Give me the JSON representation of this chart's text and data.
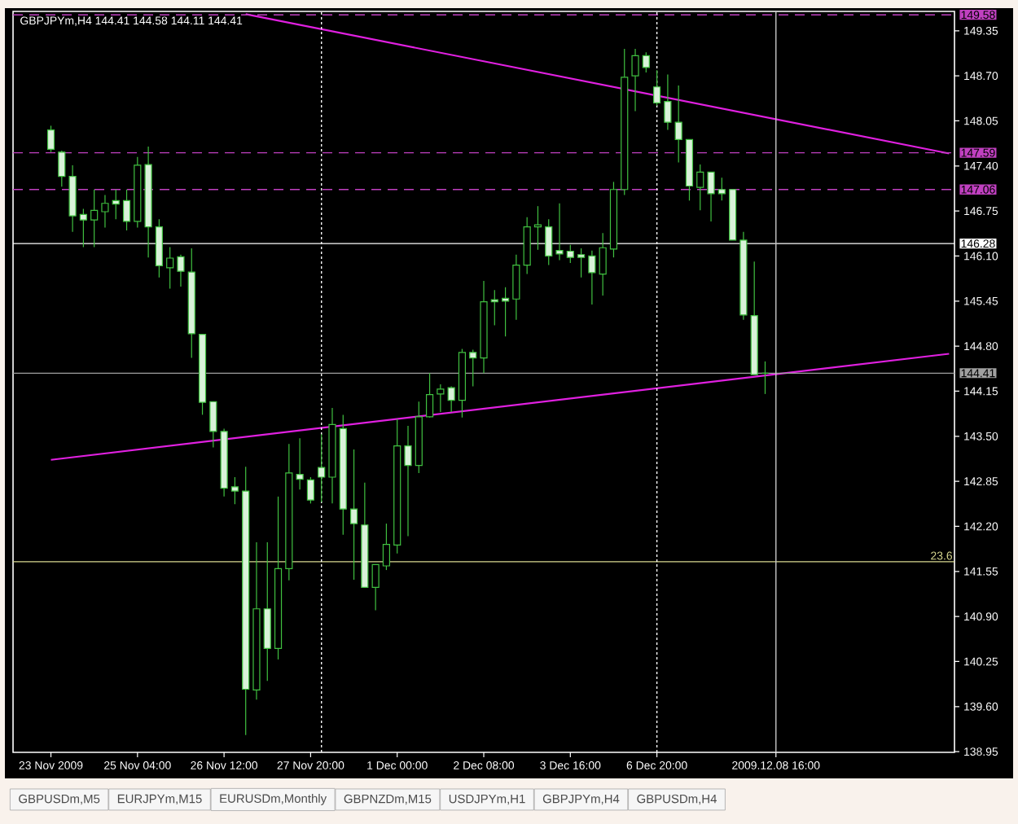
{
  "chart_data": {
    "type": "candlestick",
    "title": "GBPJPYm,H4  144.41 144.58 144.11 144.41",
    "categories": [
      "23 Nov 2009",
      null,
      null,
      null,
      null,
      null,
      null,
      null,
      "25 Nov 04:00",
      null,
      null,
      null,
      null,
      null,
      null,
      null,
      "26 Nov 12:00",
      null,
      null,
      null,
      null,
      null,
      null,
      null,
      "27 Nov 20:00",
      null,
      null,
      null,
      null,
      null,
      null,
      null,
      "1 Dec 00:00",
      null,
      null,
      null,
      null,
      null,
      null,
      null,
      "2 Dec 08:00",
      null,
      null,
      null,
      null,
      null,
      null,
      null,
      "3 Dec 16:00",
      null,
      null,
      null,
      null,
      null,
      null,
      null,
      "6 Dec 20:00",
      null,
      null,
      null,
      null,
      null,
      null,
      null,
      null,
      null,
      null,
      "2009.12.08 16:00",
      null,
      null,
      null,
      null,
      null,
      null,
      null,
      null,
      null,
      null,
      null,
      null,
      null,
      null,
      null,
      null
    ],
    "ohlc": [
      [
        147.92,
        147.98,
        147.6,
        147.64
      ],
      [
        147.6,
        147.62,
        147.1,
        147.25
      ],
      [
        147.25,
        147.41,
        146.45,
        146.68
      ],
      [
        146.7,
        146.78,
        146.23,
        146.62
      ],
      [
        146.62,
        147.06,
        146.23,
        146.76
      ],
      [
        146.74,
        146.98,
        146.51,
        146.86
      ],
      [
        146.9,
        147.06,
        146.63,
        146.85
      ],
      [
        146.9,
        147.06,
        146.47,
        146.6
      ],
      [
        146.6,
        147.53,
        146.51,
        147.41
      ],
      [
        147.42,
        147.68,
        146.08,
        146.52
      ],
      [
        146.52,
        146.63,
        145.79,
        145.96
      ],
      [
        145.93,
        146.23,
        145.63,
        146.07
      ],
      [
        146.09,
        146.12,
        145.66,
        145.88
      ],
      [
        145.87,
        146.21,
        144.63,
        144.98
      ],
      [
        144.97,
        144.97,
        143.81,
        143.99
      ],
      [
        144.0,
        144.0,
        143.34,
        143.57
      ],
      [
        143.57,
        143.61,
        142.63,
        142.75
      ],
      [
        142.77,
        142.91,
        142.52,
        142.71
      ],
      [
        142.71,
        143.06,
        139.19,
        139.85
      ],
      [
        139.84,
        141.97,
        139.7,
        141.01
      ],
      [
        141.01,
        141.97,
        139.97,
        140.44
      ],
      [
        140.44,
        142.63,
        140.28,
        141.59
      ],
      [
        141.59,
        143.39,
        141.42,
        142.97
      ],
      [
        142.95,
        143.47,
        142.73,
        142.88
      ],
      [
        142.87,
        142.91,
        142.53,
        142.58
      ],
      [
        143.05,
        143.53,
        142.55,
        142.91
      ],
      [
        142.91,
        143.91,
        142.53,
        143.67
      ],
      [
        143.61,
        143.81,
        142.08,
        142.45
      ],
      [
        142.45,
        143.31,
        141.43,
        142.24
      ],
      [
        142.22,
        142.83,
        141.32,
        141.32
      ],
      [
        141.32,
        141.65,
        140.99,
        141.65
      ],
      [
        141.63,
        142.24,
        141.57,
        141.94
      ],
      [
        141.93,
        143.75,
        141.81,
        143.36
      ],
      [
        143.36,
        143.65,
        142.06,
        143.08
      ],
      [
        143.08,
        144.0,
        142.97,
        143.78
      ],
      [
        143.78,
        144.41,
        143.77,
        144.1
      ],
      [
        144.11,
        144.25,
        143.85,
        144.18
      ],
      [
        144.2,
        144.22,
        143.85,
        144.02
      ],
      [
        144.02,
        144.76,
        143.77,
        144.71
      ],
      [
        144.71,
        144.75,
        144.22,
        144.63
      ],
      [
        144.63,
        145.74,
        144.41,
        145.44
      ],
      [
        145.47,
        145.61,
        145.1,
        145.44
      ],
      [
        145.49,
        145.65,
        144.94,
        145.45
      ],
      [
        145.48,
        146.12,
        145.18,
        145.97
      ],
      [
        145.97,
        146.66,
        145.84,
        146.52
      ],
      [
        146.52,
        146.82,
        146.19,
        146.55
      ],
      [
        146.52,
        146.63,
        145.97,
        146.1
      ],
      [
        146.18,
        146.86,
        146.04,
        146.13
      ],
      [
        146.17,
        146.26,
        146.0,
        146.08
      ],
      [
        146.12,
        146.21,
        145.79,
        146.08
      ],
      [
        146.1,
        146.18,
        145.4,
        145.86
      ],
      [
        145.84,
        146.43,
        145.53,
        146.22
      ],
      [
        146.2,
        147.17,
        146.08,
        147.06
      ],
      [
        147.06,
        149.09,
        146.98,
        148.68
      ],
      [
        148.7,
        149.09,
        148.19,
        148.99
      ],
      [
        148.99,
        149.04,
        148.75,
        148.82
      ],
      [
        148.54,
        148.78,
        148.27,
        148.31
      ],
      [
        148.33,
        148.72,
        147.92,
        148.03
      ],
      [
        148.03,
        148.56,
        147.45,
        147.78
      ],
      [
        147.78,
        147.78,
        146.9,
        147.11
      ],
      [
        147.09,
        147.42,
        146.76,
        147.31
      ],
      [
        147.31,
        147.31,
        146.6,
        147.0
      ],
      [
        147.06,
        147.23,
        146.9,
        147.0
      ],
      [
        147.06,
        147.07,
        146.33,
        146.33
      ],
      [
        146.33,
        146.45,
        145.18,
        145.25
      ],
      [
        145.24,
        146.02,
        144.39,
        144.39
      ],
      [
        144.41,
        144.58,
        144.11,
        144.41
      ],
      null,
      null,
      null,
      null,
      null,
      null,
      null,
      null,
      null,
      null,
      null,
      null,
      null,
      null,
      null,
      null,
      null
    ],
    "color": "#40c040",
    "series": [
      {
        "type": "line",
        "color": "#e020e0",
        "values": [
          null,
          null,
          null,
          null,
          null,
          null,
          null,
          null,
          null,
          null,
          null,
          null,
          null,
          null,
          null,
          null,
          null,
          null,
          149.59,
          null,
          null,
          null,
          null,
          null,
          null,
          null,
          null,
          null,
          null,
          null,
          null,
          null,
          null,
          null,
          null,
          null,
          null,
          null,
          null,
          null,
          null,
          null,
          null,
          null,
          null,
          null,
          null,
          null,
          null,
          null,
          null,
          null,
          null,
          null,
          null,
          null,
          null,
          null,
          null,
          null,
          null,
          null,
          null,
          null,
          null,
          null,
          null,
          null,
          null,
          null,
          null,
          null,
          null,
          null,
          null,
          null,
          null,
          null,
          null,
          null,
          null,
          null,
          null,
          147.58
        ]
      },
      {
        "type": "line",
        "color": "#e020e0",
        "values": [
          143.16,
          null,
          null,
          null,
          null,
          null,
          null,
          null,
          null,
          null,
          null,
          null,
          null,
          null,
          null,
          null,
          null,
          null,
          null,
          null,
          null,
          null,
          null,
          null,
          null,
          null,
          null,
          null,
          null,
          null,
          null,
          null,
          null,
          null,
          null,
          null,
          null,
          null,
          null,
          null,
          null,
          null,
          null,
          null,
          null,
          null,
          null,
          null,
          null,
          null,
          null,
          null,
          null,
          null,
          null,
          null,
          null,
          null,
          null,
          null,
          null,
          null,
          null,
          null,
          null,
          null,
          null,
          null,
          null,
          null,
          null,
          null,
          null,
          null,
          null,
          null,
          null,
          null,
          null,
          null,
          null,
          null,
          null,
          144.69
        ]
      }
    ],
    "ylim": [
      138.94,
      149.63
    ],
    "yticks": [
      149.35,
      {
        "value": 148.7,
        "label": "148.70"
      },
      148.05,
      {
        "value": 147.4,
        "label": "147.40"
      },
      146.75,
      {
        "value": 146.1,
        "label": "146.10"
      },
      145.45,
      {
        "value": 144.8,
        "label": "144.80"
      },
      144.15,
      {
        "value": 143.5,
        "label": "143.50"
      },
      142.85,
      {
        "value": 142.2,
        "label": "142.20"
      },
      141.55,
      {
        "value": 140.9,
        "label": "140.90"
      },
      140.25,
      {
        "value": 139.6,
        "label": "139.60"
      },
      138.95
    ],
    "ref_lines": [
      {
        "axis": "y",
        "value": 149.58,
        "label": "149.58",
        "color": "#c040c0",
        "line_style": "dashed"
      },
      {
        "axis": "y",
        "value": 147.59,
        "label": "147.59",
        "color": "#c040c0",
        "line_style": "dashed"
      },
      {
        "axis": "y",
        "value": 147.06,
        "label": "147.06",
        "color": "#c040c0",
        "line_style": "dashed"
      },
      {
        "axis": "y",
        "value": 146.28,
        "label": "146.28",
        "color": "#ffffff",
        "line_style": "solid"
      },
      {
        "axis": "y",
        "value": 144.41,
        "label": "144.41",
        "color": "#a0a0a0",
        "line_style": "solid"
      },
      {
        "axis": "y",
        "value": 141.69,
        "color": "#d8d890",
        "line_style": "solid"
      },
      {
        "axis": "x",
        "value": "6 Dec 20:00",
        "color": "#ffffff",
        "line_style": "dotted"
      },
      {
        "axis": "x",
        "value": "2009.12.08 16:00",
        "color": "#c8c8c8",
        "line_style": "solid"
      }
    ],
    "annotations": [
      {
        "text": "23.6",
        "y": 141.69
      },
      "GBPUSDm,M5",
      "EURJPYm,M15",
      "EURUSDm,Monthly",
      "GBPNZDm,M15",
      "USDJPYm,H1",
      "GBPJPYm,H4",
      "GBPUSDm,H4"
    ]
  }
}
